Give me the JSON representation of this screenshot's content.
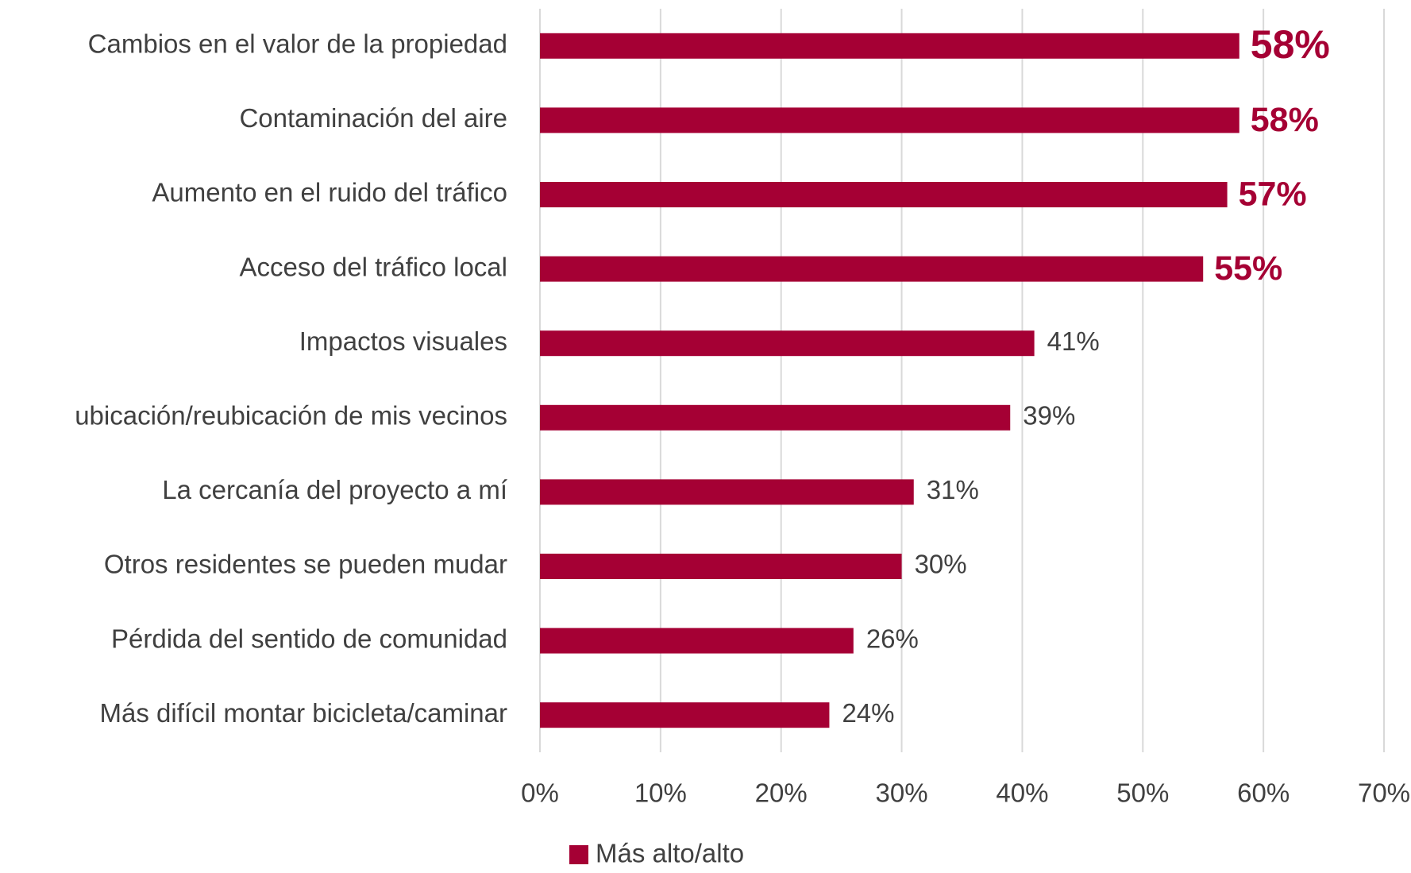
{
  "chart_data": {
    "type": "bar",
    "orientation": "horizontal",
    "categories": [
      "Cambios en el valor de la propiedad",
      "Contaminación del aire",
      "Aumento en el ruido del tráfico",
      "Acceso del tráfico local",
      "Impactos visuales",
      "ubicación/reubicación de mis vecinos",
      "La cercanía del proyecto a mí",
      "Otros residentes se pueden mudar",
      "Pérdida del sentido de comunidad",
      "Más difícil montar bicicleta/caminar"
    ],
    "series": [
      {
        "name": "Más alto/alto",
        "color": "#a50034",
        "values": [
          58,
          58,
          57,
          55,
          41,
          39,
          31,
          30,
          26,
          24
        ],
        "value_labels": [
          "58%",
          "58%",
          "57%",
          "55%",
          "41%",
          "39%",
          "31%",
          "30%",
          "26%",
          "24%"
        ]
      }
    ],
    "highlighted": [
      true,
      true,
      true,
      true,
      false,
      false,
      false,
      false,
      false,
      false
    ],
    "xlim": [
      0,
      70
    ],
    "xticks": [
      {
        "value": 0,
        "label": "0%"
      },
      {
        "value": 10,
        "label": "10%"
      },
      {
        "value": 20,
        "label": "20%"
      },
      {
        "value": 30,
        "label": "30%"
      },
      {
        "value": 40,
        "label": "40%"
      },
      {
        "value": 50,
        "label": "50%"
      },
      {
        "value": 60,
        "label": "60%"
      },
      {
        "value": 70,
        "label": "70%"
      }
    ],
    "grid": true,
    "legend": "bottom"
  }
}
